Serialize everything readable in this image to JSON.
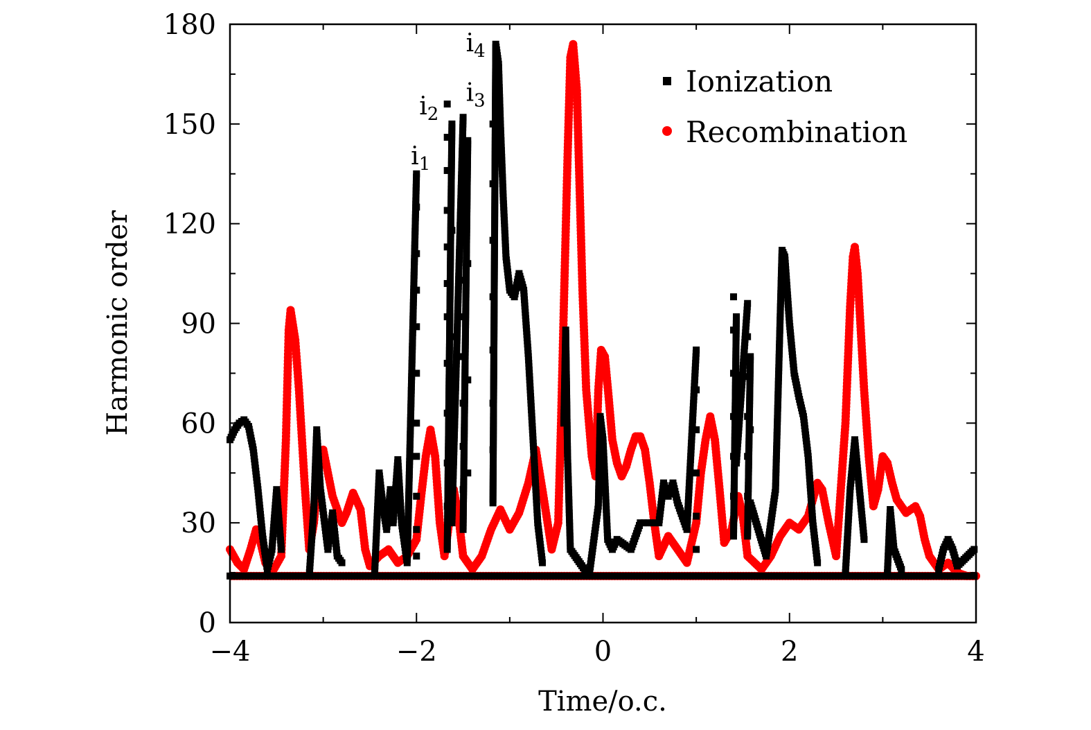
{
  "chart_data": {
    "type": "scatter",
    "title": "",
    "xlabel": "Time/o.c.",
    "ylabel": "Harmonic order",
    "xlim": [
      -4,
      4
    ],
    "ylim": [
      0,
      180
    ],
    "xticks": [
      -4,
      -2,
      0,
      2,
      4
    ],
    "xtick_labels": [
      "−4",
      "−2",
      "0",
      "2",
      "4"
    ],
    "yticks": [
      0,
      30,
      60,
      90,
      120,
      150,
      180
    ],
    "ytick_labels": [
      "0",
      "30",
      "60",
      "90",
      "120",
      "150",
      "180"
    ],
    "grid": false,
    "legend_position": "top-right",
    "series": [
      {
        "name": "Ionization",
        "marker": "square",
        "color": "#000000",
        "points": [
          [
            -4.0,
            55
          ],
          [
            -3.95,
            58
          ],
          [
            -3.9,
            60
          ],
          [
            -3.85,
            61
          ],
          [
            -3.8,
            59
          ],
          [
            -3.75,
            52
          ],
          [
            -3.7,
            40
          ],
          [
            -3.65,
            26
          ],
          [
            -3.6,
            16
          ],
          [
            -3.55,
            22
          ],
          [
            -3.5,
            40
          ],
          [
            -3.45,
            22
          ],
          [
            -3.15,
            14
          ],
          [
            -3.1,
            35
          ],
          [
            -3.07,
            58
          ],
          [
            -3.03,
            40
          ],
          [
            -2.95,
            22
          ],
          [
            -2.9,
            33
          ],
          [
            -2.85,
            20
          ],
          [
            -2.8,
            18
          ],
          [
            -2.45,
            14
          ],
          [
            -2.4,
            45
          ],
          [
            -2.36,
            35
          ],
          [
            -2.32,
            28
          ],
          [
            -2.28,
            40
          ],
          [
            -2.25,
            30
          ],
          [
            -2.2,
            49
          ],
          [
            -2.16,
            30
          ],
          [
            -2.1,
            18
          ],
          [
            -2.0,
            135
          ],
          [
            -2.0,
            125
          ],
          [
            -2.0,
            111
          ],
          [
            -2.0,
            100
          ],
          [
            -2.0,
            89
          ],
          [
            -2.0,
            75
          ],
          [
            -2.0,
            60
          ],
          [
            -2.0,
            50
          ],
          [
            -2.0,
            38
          ],
          [
            -2.0,
            28
          ],
          [
            -2.0,
            20
          ],
          [
            -1.67,
            156
          ],
          [
            -1.67,
            146
          ],
          [
            -1.67,
            136
          ],
          [
            -1.67,
            124
          ],
          [
            -1.67,
            113
          ],
          [
            -1.67,
            102
          ],
          [
            -1.67,
            92
          ],
          [
            -1.67,
            78
          ],
          [
            -1.67,
            63
          ],
          [
            -1.67,
            48
          ],
          [
            -1.67,
            35
          ],
          [
            -1.67,
            22
          ],
          [
            -1.62,
            150
          ],
          [
            -1.62,
            118
          ],
          [
            -1.62,
            86
          ],
          [
            -1.62,
            55
          ],
          [
            -1.62,
            30
          ],
          [
            -1.5,
            152
          ],
          [
            -1.5,
            140
          ],
          [
            -1.5,
            128
          ],
          [
            -1.5,
            115
          ],
          [
            -1.5,
            103
          ],
          [
            -1.5,
            92
          ],
          [
            -1.5,
            80
          ],
          [
            -1.5,
            66
          ],
          [
            -1.5,
            53
          ],
          [
            -1.5,
            40
          ],
          [
            -1.5,
            28
          ],
          [
            -1.45,
            145
          ],
          [
            -1.45,
            108
          ],
          [
            -1.45,
            73
          ],
          [
            -1.45,
            45
          ],
          [
            -1.18,
            150
          ],
          [
            -1.18,
            132
          ],
          [
            -1.18,
            115
          ],
          [
            -1.18,
            98
          ],
          [
            -1.18,
            82
          ],
          [
            -1.18,
            66
          ],
          [
            -1.18,
            52
          ],
          [
            -1.18,
            36
          ],
          [
            -1.15,
            174
          ],
          [
            -1.12,
            168
          ],
          [
            -1.1,
            150
          ],
          [
            -1.07,
            128
          ],
          [
            -1.04,
            110
          ],
          [
            -1.0,
            100
          ],
          [
            -0.95,
            98
          ],
          [
            -0.9,
            105
          ],
          [
            -0.85,
            100
          ],
          [
            -0.8,
            80
          ],
          [
            -0.75,
            55
          ],
          [
            -0.7,
            30
          ],
          [
            -0.65,
            18
          ],
          [
            -0.42,
            60
          ],
          [
            -0.4,
            88
          ],
          [
            -0.38,
            50
          ],
          [
            -0.35,
            22
          ],
          [
            -0.15,
            14
          ],
          [
            -0.05,
            35
          ],
          [
            -0.03,
            62
          ],
          [
            0.0,
            55
          ],
          [
            0.05,
            25
          ],
          [
            0.1,
            22
          ],
          [
            0.15,
            25
          ],
          [
            0.3,
            22
          ],
          [
            0.4,
            30
          ],
          [
            0.6,
            30
          ],
          [
            0.65,
            42
          ],
          [
            0.7,
            38
          ],
          [
            0.75,
            42
          ],
          [
            0.8,
            36
          ],
          [
            0.9,
            28
          ],
          [
            1.0,
            82
          ],
          [
            1.0,
            70
          ],
          [
            1.0,
            58
          ],
          [
            1.0,
            45
          ],
          [
            1.0,
            32
          ],
          [
            1.0,
            22
          ],
          [
            1.4,
            98
          ],
          [
            1.4,
            88
          ],
          [
            1.4,
            75
          ],
          [
            1.4,
            62
          ],
          [
            1.4,
            50
          ],
          [
            1.4,
            38
          ],
          [
            1.4,
            26
          ],
          [
            1.43,
            92
          ],
          [
            1.43,
            70
          ],
          [
            1.43,
            48
          ],
          [
            1.55,
            96
          ],
          [
            1.55,
            86
          ],
          [
            1.55,
            74
          ],
          [
            1.55,
            62
          ],
          [
            1.55,
            50
          ],
          [
            1.55,
            38
          ],
          [
            1.55,
            26
          ],
          [
            1.58,
            80
          ],
          [
            1.58,
            58
          ],
          [
            1.58,
            36
          ],
          [
            1.75,
            20
          ],
          [
            1.85,
            40
          ],
          [
            1.9,
            92
          ],
          [
            1.92,
            112
          ],
          [
            1.95,
            110
          ],
          [
            2.0,
            90
          ],
          [
            2.05,
            75
          ],
          [
            2.1,
            68
          ],
          [
            2.15,
            62
          ],
          [
            2.2,
            50
          ],
          [
            2.25,
            30
          ],
          [
            2.3,
            18
          ],
          [
            2.6,
            15
          ],
          [
            2.65,
            40
          ],
          [
            2.7,
            55
          ],
          [
            2.75,
            40
          ],
          [
            2.8,
            25
          ],
          [
            3.05,
            15
          ],
          [
            3.08,
            34
          ],
          [
            3.12,
            22
          ],
          [
            3.2,
            16
          ],
          [
            3.6,
            16
          ],
          [
            3.65,
            22
          ],
          [
            3.7,
            25
          ],
          [
            3.75,
            22
          ],
          [
            3.8,
            17
          ],
          [
            3.98,
            22
          ]
        ]
      },
      {
        "name": "Recombination",
        "marker": "circle",
        "color": "#ff0000",
        "points": [
          [
            -4.0,
            22
          ],
          [
            -3.92,
            18
          ],
          [
            -3.85,
            16
          ],
          [
            -3.78,
            22
          ],
          [
            -3.72,
            28
          ],
          [
            -3.68,
            25
          ],
          [
            -3.62,
            18
          ],
          [
            -3.55,
            15
          ],
          [
            -3.45,
            20
          ],
          [
            -3.4,
            55
          ],
          [
            -3.37,
            88
          ],
          [
            -3.35,
            94
          ],
          [
            -3.3,
            85
          ],
          [
            -3.26,
            70
          ],
          [
            -3.2,
            42
          ],
          [
            -3.15,
            22
          ],
          [
            -3.1,
            30
          ],
          [
            -3.05,
            46
          ],
          [
            -3.0,
            52
          ],
          [
            -2.95,
            45
          ],
          [
            -2.9,
            38
          ],
          [
            -2.85,
            34
          ],
          [
            -2.8,
            30
          ],
          [
            -2.75,
            33
          ],
          [
            -2.68,
            39
          ],
          [
            -2.6,
            34
          ],
          [
            -2.55,
            22
          ],
          [
            -2.5,
            17
          ],
          [
            -2.4,
            20
          ],
          [
            -2.3,
            22
          ],
          [
            -2.2,
            18
          ],
          [
            -2.1,
            20
          ],
          [
            -2.0,
            25
          ],
          [
            -1.95,
            38
          ],
          [
            -1.9,
            50
          ],
          [
            -1.85,
            58
          ],
          [
            -1.8,
            50
          ],
          [
            -1.75,
            30
          ],
          [
            -1.7,
            20
          ],
          [
            -1.65,
            30
          ],
          [
            -1.6,
            40
          ],
          [
            -1.55,
            32
          ],
          [
            -1.5,
            20
          ],
          [
            -1.4,
            16
          ],
          [
            -1.3,
            20
          ],
          [
            -1.2,
            28
          ],
          [
            -1.1,
            34
          ],
          [
            -1.0,
            28
          ],
          [
            -0.9,
            33
          ],
          [
            -0.8,
            42
          ],
          [
            -0.72,
            52
          ],
          [
            -0.65,
            40
          ],
          [
            -0.55,
            22
          ],
          [
            -0.48,
            30
          ],
          [
            -0.45,
            60
          ],
          [
            -0.42,
            95
          ],
          [
            -0.38,
            140
          ],
          [
            -0.35,
            170
          ],
          [
            -0.32,
            174
          ],
          [
            -0.28,
            160
          ],
          [
            -0.25,
            130
          ],
          [
            -0.22,
            100
          ],
          [
            -0.18,
            70
          ],
          [
            -0.12,
            50
          ],
          [
            -0.08,
            44
          ],
          [
            -0.05,
            70
          ],
          [
            -0.02,
            82
          ],
          [
            0.02,
            80
          ],
          [
            0.06,
            68
          ],
          [
            0.1,
            55
          ],
          [
            0.15,
            48
          ],
          [
            0.2,
            44
          ],
          [
            0.25,
            47
          ],
          [
            0.3,
            52
          ],
          [
            0.35,
            56
          ],
          [
            0.4,
            56
          ],
          [
            0.45,
            52
          ],
          [
            0.5,
            42
          ],
          [
            0.55,
            30
          ],
          [
            0.6,
            20
          ],
          [
            0.7,
            26
          ],
          [
            0.8,
            22
          ],
          [
            0.9,
            18
          ],
          [
            1.0,
            30
          ],
          [
            1.05,
            45
          ],
          [
            1.1,
            55
          ],
          [
            1.15,
            62
          ],
          [
            1.2,
            55
          ],
          [
            1.25,
            40
          ],
          [
            1.3,
            24
          ],
          [
            1.38,
            28
          ],
          [
            1.45,
            38
          ],
          [
            1.5,
            32
          ],
          [
            1.55,
            20
          ],
          [
            1.7,
            16
          ],
          [
            1.8,
            20
          ],
          [
            1.9,
            26
          ],
          [
            2.0,
            30
          ],
          [
            2.1,
            28
          ],
          [
            2.2,
            32
          ],
          [
            2.3,
            42
          ],
          [
            2.35,
            40
          ],
          [
            2.42,
            30
          ],
          [
            2.5,
            20
          ],
          [
            2.6,
            60
          ],
          [
            2.65,
            95
          ],
          [
            2.68,
            110
          ],
          [
            2.7,
            113
          ],
          [
            2.73,
            105
          ],
          [
            2.76,
            90
          ],
          [
            2.8,
            70
          ],
          [
            2.85,
            50
          ],
          [
            2.9,
            35
          ],
          [
            2.95,
            40
          ],
          [
            3.0,
            50
          ],
          [
            3.05,
            48
          ],
          [
            3.1,
            42
          ],
          [
            3.15,
            37
          ],
          [
            3.2,
            35
          ],
          [
            3.25,
            33
          ],
          [
            3.3,
            34
          ],
          [
            3.35,
            35
          ],
          [
            3.4,
            32
          ],
          [
            3.45,
            25
          ],
          [
            3.5,
            20
          ],
          [
            3.6,
            16
          ],
          [
            3.7,
            18
          ],
          [
            3.8,
            15
          ],
          [
            3.9,
            14
          ],
          [
            4.0,
            14
          ]
        ]
      }
    ],
    "annotations": [
      {
        "base": "i",
        "sub": "1",
        "x": -2.06,
        "y": 140
      },
      {
        "base": "i",
        "sub": "2",
        "x": -1.97,
        "y": 155
      },
      {
        "base": "i",
        "sub": "3",
        "x": -1.47,
        "y": 159
      },
      {
        "base": "i",
        "sub": "4",
        "x": -1.47,
        "y": 174
      }
    ]
  },
  "colors": {
    "ionization": "#000000",
    "recombination": "#ff0000",
    "axis": "#000000"
  }
}
